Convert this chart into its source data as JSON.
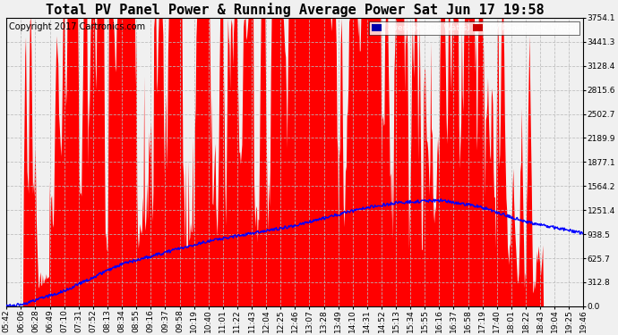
{
  "title": "Total PV Panel Power & Running Average Power Sat Jun 17 19:58",
  "copyright": "Copyright 2017 Cartronics.com",
  "ylabel_right_values": [
    3754.1,
    3441.3,
    3128.4,
    2815.6,
    2502.7,
    2189.9,
    1877.1,
    1564.2,
    1251.4,
    938.5,
    625.7,
    312.8,
    0.0
  ],
  "ylim": [
    0,
    3754.1
  ],
  "pv_color": "#FF0000",
  "avg_color": "#0000FF",
  "background_color": "#F0F0F0",
  "grid_color": "#AAAAAA",
  "legend_avg_bg": "#0000AA",
  "legend_pv_bg": "#CC0000",
  "xtick_labels": [
    "05:42",
    "06:06",
    "06:28",
    "06:49",
    "07:10",
    "07:31",
    "07:52",
    "08:13",
    "08:34",
    "08:55",
    "09:16",
    "09:37",
    "09:58",
    "10:19",
    "10:40",
    "11:01",
    "11:22",
    "11:43",
    "12:04",
    "12:25",
    "12:46",
    "13:07",
    "13:28",
    "13:49",
    "14:10",
    "14:31",
    "14:52",
    "15:13",
    "15:34",
    "15:55",
    "16:16",
    "16:37",
    "16:58",
    "17:19",
    "17:40",
    "18:01",
    "18:22",
    "18:43",
    "19:04",
    "19:25",
    "19:46"
  ],
  "num_points": 820,
  "title_fontsize": 11,
  "tick_fontsize": 6.5,
  "copyright_fontsize": 7
}
